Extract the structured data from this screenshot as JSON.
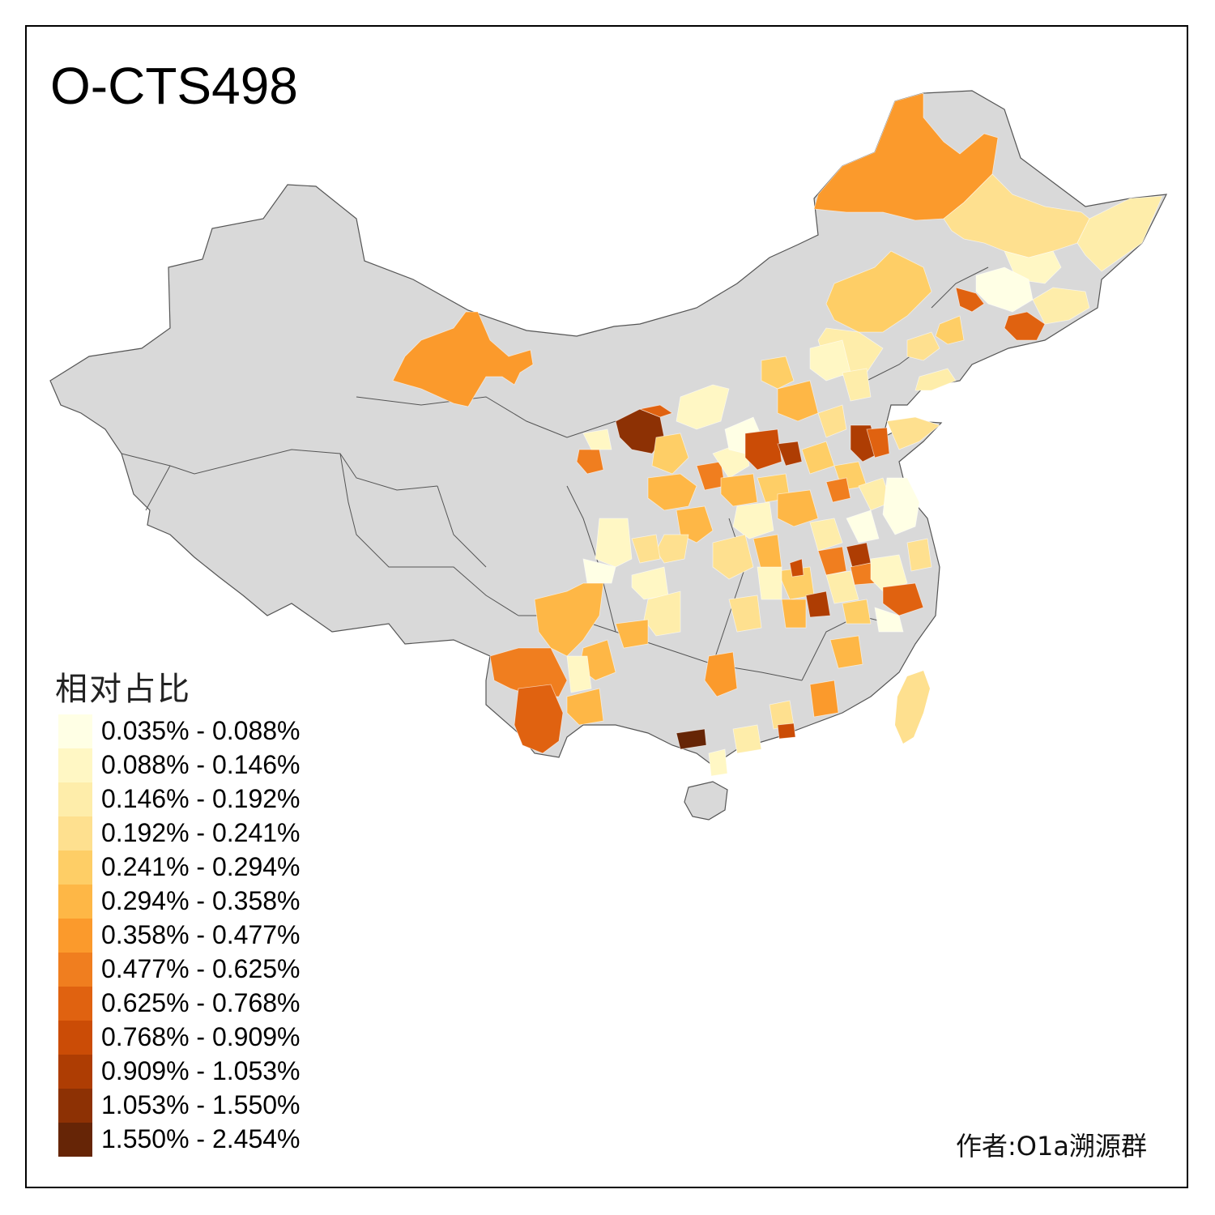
{
  "title": "O-CTS498",
  "legend": {
    "title": "相对占比",
    "bins": [
      {
        "label": "0.035% - 0.088%",
        "color": "#FFFFE5"
      },
      {
        "label": "0.088% - 0.146%",
        "color": "#FFF7C4"
      },
      {
        "label": "0.146% - 0.192%",
        "color": "#FEEDAA"
      },
      {
        "label": "0.192% - 0.241%",
        "color": "#FEE08F"
      },
      {
        "label": "0.241% - 0.294%",
        "color": "#FECE66"
      },
      {
        "label": "0.294% - 0.358%",
        "color": "#FEB746"
      },
      {
        "label": "0.358% - 0.477%",
        "color": "#FB9A2C"
      },
      {
        "label": "0.477% - 0.625%",
        "color": "#F07E1F"
      },
      {
        "label": "0.625% - 0.768%",
        "color": "#E06210"
      },
      {
        "label": "0.768% - 0.909%",
        "color": "#CB4C06"
      },
      {
        "label": "0.909% - 1.053%",
        "color": "#AE3D03"
      },
      {
        "label": "1.053% - 1.550%",
        "color": "#8D3104"
      },
      {
        "label": "1.550% - 2.454%",
        "color": "#662506"
      }
    ]
  },
  "author": "作者:O1a溯源群",
  "colors": {
    "no_data": "#D9D9D9",
    "border": "#555555"
  }
}
